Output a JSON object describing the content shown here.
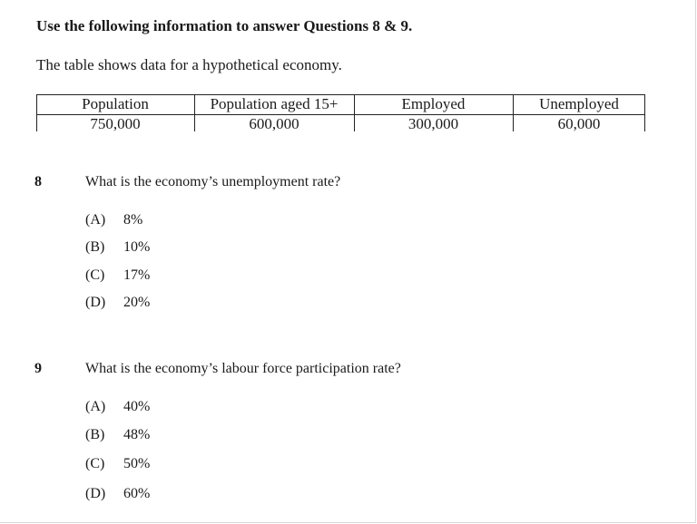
{
  "heading": "Use the following information to answer Questions 8 & 9.",
  "intro": "The table shows data for a hypothetical economy.",
  "table": {
    "headers": [
      "Population",
      "Population aged 15+",
      "Employed",
      "Unemployed"
    ],
    "values": [
      "750,000",
      "600,000",
      "300,000",
      "60,000"
    ]
  },
  "questions": [
    {
      "number": "8",
      "text": "What is the economy’s unemployment rate?",
      "options": [
        {
          "letter": "(A)",
          "value": "8%"
        },
        {
          "letter": "(B)",
          "value": "10%"
        },
        {
          "letter": "(C)",
          "value": "17%"
        },
        {
          "letter": "(D)",
          "value": "20%"
        }
      ]
    },
    {
      "number": "9",
      "text": "What is the economy’s labour force participation rate?",
      "options": [
        {
          "letter": "(A)",
          "value": "40%"
        },
        {
          "letter": "(B)",
          "value": "48%"
        },
        {
          "letter": "(C)",
          "value": "50%"
        },
        {
          "letter": "(D)",
          "value": "60%"
        }
      ]
    }
  ]
}
